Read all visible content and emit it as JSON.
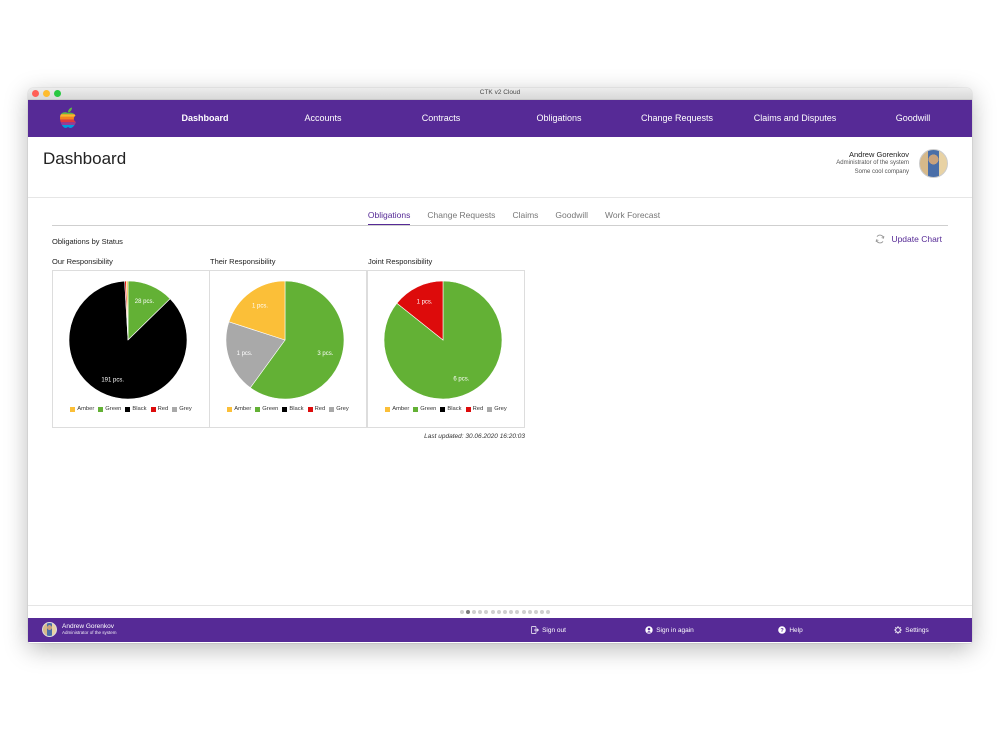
{
  "window": {
    "title": "CTK v2 Cloud",
    "traffic_lights": [
      "#ff5f57",
      "#febc2e",
      "#28c840"
    ]
  },
  "navbar": {
    "logo": "rainbow-apple-logo",
    "items": [
      {
        "label": "Dashboard",
        "active": true
      },
      {
        "label": "Accounts"
      },
      {
        "label": "Contracts"
      },
      {
        "label": "Obligations"
      },
      {
        "label": "Change Requests"
      },
      {
        "label": "Claims and Disputes"
      },
      {
        "label": "Goodwill"
      }
    ],
    "background": "#562a96"
  },
  "header": {
    "title": "Dashboard",
    "user": {
      "name": "Andrew Gorenkov",
      "role": "Administrator of the system",
      "company": "Some cool company"
    }
  },
  "tabs": [
    {
      "label": "Obligations",
      "active": true
    },
    {
      "label": "Change Requests"
    },
    {
      "label": "Claims"
    },
    {
      "label": "Goodwill"
    },
    {
      "label": "Work Forecast"
    }
  ],
  "section": {
    "title": "Obligations by Status",
    "update_label": "Update Chart",
    "last_updated": "Last updated: 30.06.2020 16:20:03"
  },
  "legend": [
    {
      "label": "Amber",
      "color": "#fbbf38"
    },
    {
      "label": "Green",
      "color": "#63b135"
    },
    {
      "label": "Black",
      "color": "#000000"
    },
    {
      "label": "Red",
      "color": "#dd0b0b"
    },
    {
      "label": "Grey",
      "color": "#a9a9a9"
    }
  ],
  "chart_data": [
    {
      "type": "pie",
      "title": "Our Responsibility",
      "categories": [
        "Amber",
        "Green",
        "Black",
        "Red",
        "Grey"
      ],
      "values": [
        1,
        28,
        191,
        1,
        0
      ],
      "labels": [
        "",
        "28 pcs.",
        "191 pcs.",
        "",
        ""
      ],
      "unit": "pcs.",
      "legend_position": "bottom"
    },
    {
      "type": "pie",
      "title": "Their Responsibility",
      "categories": [
        "Amber",
        "Green",
        "Black",
        "Red",
        "Grey"
      ],
      "values": [
        1,
        3,
        0,
        0,
        1
      ],
      "labels": [
        "1 pcs.",
        "3 pcs.",
        "",
        "",
        "1 pcs."
      ],
      "unit": "pcs.",
      "legend_position": "bottom"
    },
    {
      "type": "pie",
      "title": "Joint Responsibility",
      "categories": [
        "Amber",
        "Green",
        "Black",
        "Red",
        "Grey"
      ],
      "values": [
        0,
        6,
        0,
        1,
        0
      ],
      "labels": [
        "",
        "6 pcs.",
        "",
        "1 pcs.",
        ""
      ],
      "unit": "pcs.",
      "legend_position": "bottom"
    }
  ],
  "pager": {
    "count": 15,
    "active_index": 1
  },
  "footer": {
    "user": {
      "name": "Andrew Gorenkov",
      "role": "Administrator of the system"
    },
    "actions": [
      {
        "label": "Sign out",
        "icon": "sign-out-icon"
      },
      {
        "label": "Sign in again",
        "icon": "user-circle-icon"
      },
      {
        "label": "Help",
        "icon": "help-icon"
      },
      {
        "label": "Settings",
        "icon": "gear-icon"
      }
    ]
  }
}
